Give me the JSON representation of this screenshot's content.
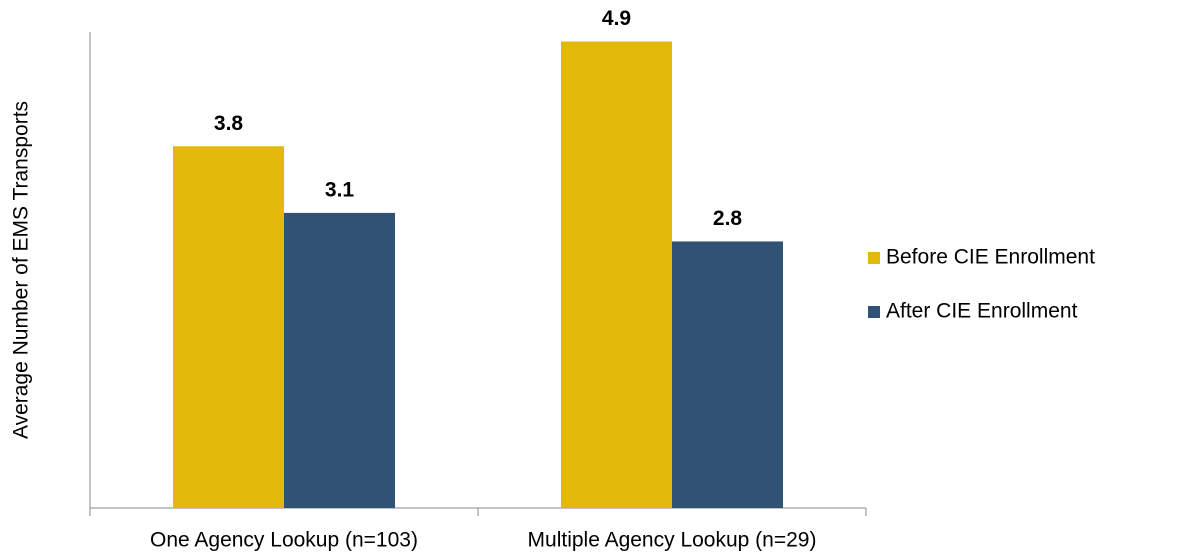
{
  "chart_data": {
    "type": "bar",
    "y_label": "Average Number of EMS Transports",
    "categories": [
      "One Agency Lookup (n=103)",
      "Multiple Agency Lookup (n=29)"
    ],
    "series": [
      {
        "name": "Before CIE Enrollment",
        "color": "#e2b80b",
        "values": [
          3.8,
          4.9
        ]
      },
      {
        "name": "After CIE Enrollment",
        "color": "#2f5275",
        "values": [
          3.1,
          2.8
        ]
      }
    ],
    "ylim": [
      0,
      5
    ],
    "legend": "right"
  }
}
